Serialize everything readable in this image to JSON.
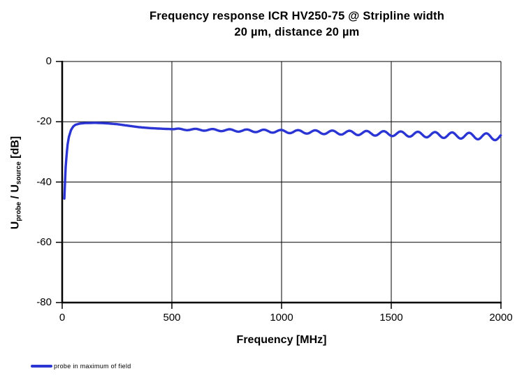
{
  "title": {
    "line1": "Frequency response ICR HV250-75 @ Stripline width",
    "line2": "20 µm, distance 20 µm"
  },
  "axes": {
    "x_label": "Frequency [MHz]",
    "y_label_parts": {
      "u1": "U",
      "sub1": "probe",
      "sep": " / U",
      "sub2": "source",
      "unit": " [dB]"
    }
  },
  "legend": {
    "label": "probe in maximum of field"
  },
  "colors": {
    "curve": "#2a35d4",
    "grid": "#000000",
    "axis": "#000000",
    "background": "#ffffff",
    "text": "#000000"
  },
  "chart_data": {
    "type": "line",
    "title": "Frequency response ICR HV250-75 @ Stripline width 20 µm, distance 20 µm",
    "xlabel": "Frequency [MHz]",
    "ylabel": "Uprobe / Usource [dB]",
    "xlim": [
      0,
      2000
    ],
    "ylim": [
      -80,
      0
    ],
    "x_ticks": [
      0,
      500,
      1000,
      1500,
      2000
    ],
    "y_ticks": [
      0,
      -20,
      -40,
      -60,
      -80
    ],
    "grid": true,
    "legend_position": "bottom-left",
    "series": [
      {
        "name": "probe in maximum of field",
        "color": "#2a35d4",
        "baseline_points": [
          [
            10,
            -45.5
          ],
          [
            15,
            -36.0
          ],
          [
            20,
            -31.0
          ],
          [
            25,
            -27.5
          ],
          [
            30,
            -25.2
          ],
          [
            40,
            -22.8
          ],
          [
            50,
            -21.6
          ],
          [
            60,
            -21.0
          ],
          [
            80,
            -20.6
          ],
          [
            100,
            -20.45
          ],
          [
            150,
            -20.35
          ],
          [
            200,
            -20.5
          ],
          [
            250,
            -20.8
          ],
          [
            300,
            -21.3
          ],
          [
            350,
            -21.8
          ],
          [
            400,
            -22.1
          ],
          [
            450,
            -22.3
          ],
          [
            500,
            -22.45
          ],
          [
            600,
            -22.6
          ],
          [
            700,
            -22.75
          ],
          [
            800,
            -22.9
          ],
          [
            900,
            -23.05
          ],
          [
            1000,
            -23.2
          ],
          [
            1100,
            -23.35
          ],
          [
            1200,
            -23.5
          ],
          [
            1300,
            -23.65
          ],
          [
            1400,
            -23.8
          ],
          [
            1500,
            -23.95
          ],
          [
            1600,
            -24.15
          ],
          [
            1700,
            -24.35
          ],
          [
            1800,
            -24.55
          ],
          [
            1900,
            -24.8
          ],
          [
            2000,
            -25.1
          ]
        ],
        "ripple": {
          "start_mhz": 510,
          "period_mhz": 78,
          "amp_start_db": 0.2,
          "amp_end_db": 1.1
        }
      }
    ]
  }
}
